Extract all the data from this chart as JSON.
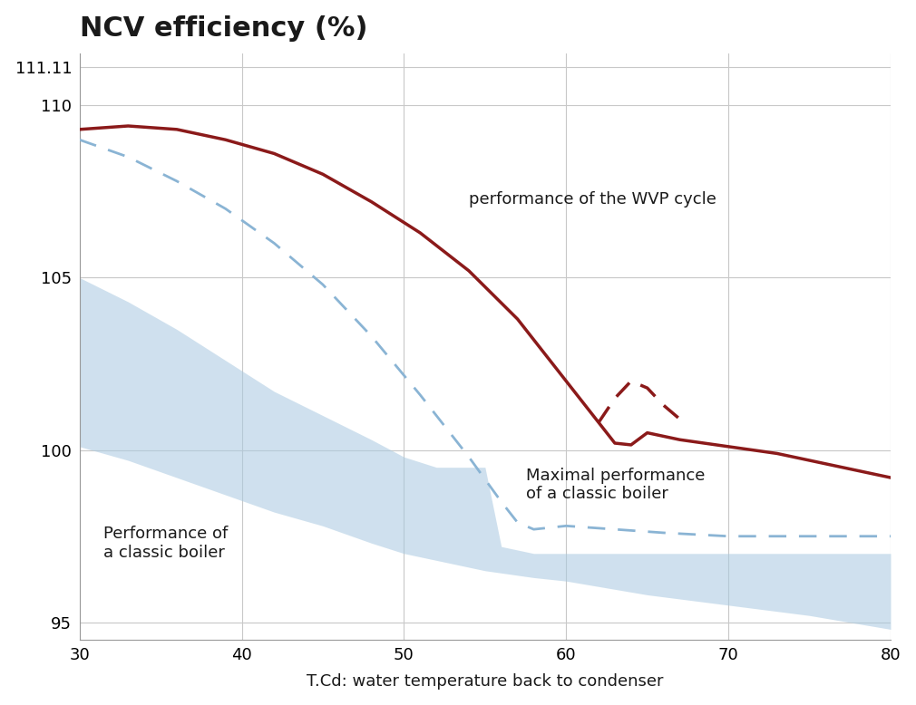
{
  "title": "NCV efficiency (%)",
  "xlabel": "T.Cd: water temperature back to condenser",
  "xlim": [
    30,
    80
  ],
  "ylim": [
    94.5,
    111.5
  ],
  "yticks": [
    95,
    100,
    105,
    110,
    111.11
  ],
  "ytick_labels": [
    "95",
    "100",
    "105",
    "110",
    "111.11"
  ],
  "xticks": [
    30,
    40,
    50,
    60,
    70,
    80
  ],
  "grid_color": "#c8c8c8",
  "background_color": "#ffffff",
  "wvp_solid_x": [
    30,
    33,
    36,
    39,
    42,
    45,
    48,
    51,
    54,
    57,
    60,
    62,
    63,
    64,
    65,
    67,
    70,
    73,
    76,
    80
  ],
  "wvp_solid_y": [
    109.3,
    109.4,
    109.3,
    109.0,
    108.6,
    108.0,
    107.2,
    106.3,
    105.2,
    103.8,
    102.0,
    100.8,
    100.2,
    100.15,
    100.5,
    100.3,
    100.1,
    99.9,
    99.6,
    99.2
  ],
  "wvp_color": "#8b1a1a",
  "wvp_linewidth": 2.5,
  "wvp_dashed_x": [
    62,
    63,
    64,
    65,
    66,
    67
  ],
  "wvp_dashed_y": [
    100.8,
    101.5,
    102.0,
    101.8,
    101.3,
    100.9
  ],
  "wvp_dashed_color": "#8b1a1a",
  "blue_dashed_x": [
    30,
    33,
    36,
    39,
    42,
    45,
    48,
    51,
    54,
    56,
    57,
    58,
    60,
    63,
    66,
    70,
    75,
    80
  ],
  "blue_dashed_y": [
    109.0,
    108.5,
    107.8,
    107.0,
    106.0,
    104.8,
    103.3,
    101.6,
    99.8,
    98.5,
    97.9,
    97.7,
    97.8,
    97.7,
    97.6,
    97.5,
    97.5,
    97.5
  ],
  "blue_dashed_color": "#8ab4d4",
  "blue_dashed_linewidth": 2.0,
  "band_upper_x": [
    30,
    33,
    36,
    39,
    42,
    45,
    48,
    50,
    52,
    55,
    56,
    58,
    60,
    65,
    70,
    75,
    80
  ],
  "band_upper_y": [
    105.0,
    104.3,
    103.5,
    102.6,
    101.7,
    101.0,
    100.3,
    99.8,
    99.5,
    99.5,
    97.2,
    97.0,
    97.0,
    97.0,
    97.0,
    97.0,
    97.0
  ],
  "band_lower_x": [
    30,
    33,
    36,
    39,
    42,
    45,
    48,
    50,
    52,
    55,
    58,
    60,
    65,
    70,
    75,
    80
  ],
  "band_lower_y": [
    100.1,
    99.7,
    99.2,
    98.7,
    98.2,
    97.8,
    97.3,
    97.0,
    96.8,
    96.5,
    96.3,
    96.2,
    95.8,
    95.5,
    95.2,
    94.8
  ],
  "band_color": "#a8c8e0",
  "band_alpha": 0.55,
  "label_wvp": "performance of the WVP cycle",
  "label_maxboiler": "Maximal performance\nof a classic boiler",
  "label_classicboiler": "Performance of\na classic boiler",
  "font_color": "#1a1a1a",
  "title_fontsize": 22,
  "axis_fontsize": 13,
  "annot_fontsize": 13
}
